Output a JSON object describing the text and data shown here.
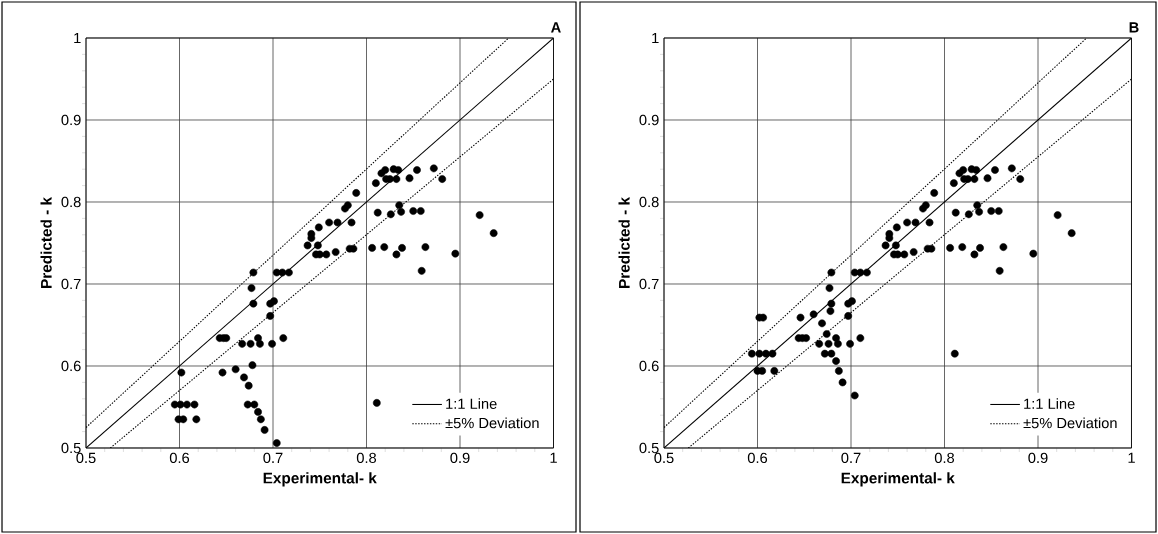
{
  "chart_data": [
    {
      "type": "scatter",
      "xlabel": "Experimental- k",
      "ylabel": "Predicted - k",
      "annotations": [
        "A"
      ],
      "xlim": [
        0.5,
        1
      ],
      "ylim": [
        0.5,
        1
      ],
      "xticks": [
        0.5,
        0.6,
        0.7,
        0.8,
        0.9,
        1
      ],
      "yticks": [
        0.5,
        0.6,
        0.7,
        0.8,
        0.9,
        1
      ],
      "grid": true,
      "legend": "bottom right",
      "series": [
        {
          "marker": "circle",
          "color": "#000000",
          "x": [
            0.679,
            0.677,
            0.679,
            0.697,
            0.701,
            0.697,
            0.704,
            0.71,
            0.717,
            0.737,
            0.741,
            0.741,
            0.748,
            0.746,
            0.75,
            0.757,
            0.749,
            0.76,
            0.769,
            0.767,
            0.777,
            0.78,
            0.784,
            0.782,
            0.786,
            0.789,
            0.806,
            0.81,
            0.812,
            0.816,
            0.82,
            0.829,
            0.834,
            0.821,
            0.825,
            0.832,
            0.819,
            0.826,
            0.832,
            0.835,
            0.837,
            0.838,
            0.846,
            0.85,
            0.858,
            0.854,
            0.859,
            0.863,
            0.872,
            0.881,
            0.895,
            0.921,
            0.936,
            0.811,
            0.643,
            0.647,
            0.65,
            0.667,
            0.676,
            0.684,
            0.686,
            0.699,
            0.711,
            0.602,
            0.646,
            0.66,
            0.669,
            0.674,
            0.678,
            0.595,
            0.601,
            0.608,
            0.616,
            0.599,
            0.604,
            0.618,
            0.673,
            0.68,
            0.684,
            0.687,
            0.691,
            0.704
          ],
          "values": [
            0.714,
            0.695,
            0.676,
            0.676,
            0.679,
            0.661,
            0.714,
            0.714,
            0.714,
            0.747,
            0.761,
            0.756,
            0.747,
            0.736,
            0.736,
            0.736,
            0.769,
            0.775,
            0.775,
            0.739,
            0.792,
            0.796,
            0.775,
            0.743,
            0.743,
            0.811,
            0.744,
            0.823,
            0.787,
            0.835,
            0.839,
            0.84,
            0.839,
            0.828,
            0.828,
            0.828,
            0.745,
            0.785,
            0.736,
            0.796,
            0.788,
            0.744,
            0.829,
            0.789,
            0.789,
            0.839,
            0.716,
            0.745,
            0.841,
            0.828,
            0.737,
            0.784,
            0.762,
            0.555,
            0.634,
            0.634,
            0.634,
            0.627,
            0.627,
            0.634,
            0.627,
            0.627,
            0.634,
            0.592,
            0.592,
            0.596,
            0.586,
            0.576,
            0.601,
            0.553,
            0.553,
            0.553,
            0.553,
            0.535,
            0.535,
            0.535,
            0.553,
            0.553,
            0.544,
            0.535,
            0.522,
            0.506
          ]
        },
        {
          "type": "line",
          "name": "1:1 Line",
          "line_style": "solid",
          "color": "#000000",
          "x": [
            0.5,
            1
          ],
          "values": [
            0.5,
            1
          ]
        },
        {
          "type": "line",
          "name": "±5% Deviation",
          "line_style": "dotted",
          "color": "#000000",
          "x": [
            0.5,
            0.952
          ],
          "values": [
            0.525,
            1
          ]
        },
        {
          "type": "line",
          "line_style": "dotted",
          "color": "#000000",
          "x": [
            0.526,
            1
          ],
          "values": [
            0.5,
            0.95
          ]
        }
      ]
    },
    {
      "type": "scatter",
      "xlabel": "Experimental- k",
      "ylabel": "Predicted - k",
      "annotations": [
        "B"
      ],
      "xlim": [
        0.5,
        1
      ],
      "ylim": [
        0.5,
        1
      ],
      "xticks": [
        0.5,
        0.6,
        0.7,
        0.8,
        0.9,
        1
      ],
      "yticks": [
        0.5,
        0.6,
        0.7,
        0.8,
        0.9,
        1
      ],
      "grid": true,
      "legend": "bottom right",
      "series": [
        {
          "marker": "circle",
          "color": "#000000",
          "x": [
            0.679,
            0.677,
            0.679,
            0.697,
            0.701,
            0.697,
            0.704,
            0.71,
            0.717,
            0.737,
            0.741,
            0.741,
            0.748,
            0.746,
            0.75,
            0.757,
            0.749,
            0.76,
            0.769,
            0.767,
            0.777,
            0.78,
            0.784,
            0.782,
            0.786,
            0.789,
            0.806,
            0.81,
            0.812,
            0.816,
            0.82,
            0.829,
            0.834,
            0.821,
            0.825,
            0.832,
            0.819,
            0.826,
            0.832,
            0.835,
            0.837,
            0.838,
            0.846,
            0.85,
            0.858,
            0.854,
            0.859,
            0.863,
            0.872,
            0.881,
            0.895,
            0.921,
            0.936,
            0.811,
            0.678,
            0.66,
            0.646,
            0.669,
            0.674,
            0.644,
            0.648,
            0.652,
            0.666,
            0.676,
            0.684,
            0.686,
            0.699,
            0.71,
            0.672,
            0.679,
            0.684,
            0.687,
            0.691,
            0.704,
            0.602,
            0.606,
            0.594,
            0.602,
            0.609,
            0.616,
            0.6,
            0.605,
            0.618
          ],
          "values": [
            0.714,
            0.695,
            0.676,
            0.676,
            0.679,
            0.661,
            0.714,
            0.714,
            0.714,
            0.747,
            0.761,
            0.756,
            0.747,
            0.736,
            0.736,
            0.736,
            0.769,
            0.775,
            0.775,
            0.739,
            0.792,
            0.796,
            0.775,
            0.743,
            0.743,
            0.811,
            0.744,
            0.823,
            0.787,
            0.835,
            0.839,
            0.84,
            0.839,
            0.828,
            0.828,
            0.828,
            0.745,
            0.785,
            0.736,
            0.796,
            0.788,
            0.744,
            0.829,
            0.789,
            0.789,
            0.839,
            0.716,
            0.745,
            0.841,
            0.828,
            0.737,
            0.784,
            0.762,
            0.615,
            0.667,
            0.663,
            0.659,
            0.652,
            0.639,
            0.634,
            0.634,
            0.634,
            0.627,
            0.627,
            0.634,
            0.627,
            0.627,
            0.634,
            0.615,
            0.615,
            0.606,
            0.594,
            0.58,
            0.564,
            0.659,
            0.659,
            0.615,
            0.615,
            0.615,
            0.615,
            0.594,
            0.594,
            0.594
          ]
        },
        {
          "type": "line",
          "name": "1:1 Line",
          "line_style": "solid",
          "color": "#000000",
          "x": [
            0.5,
            1
          ],
          "values": [
            0.5,
            1
          ]
        },
        {
          "type": "line",
          "name": "±5% Deviation",
          "line_style": "dotted",
          "color": "#000000",
          "x": [
            0.5,
            0.952
          ],
          "values": [
            0.525,
            1
          ]
        },
        {
          "type": "line",
          "line_style": "dotted",
          "color": "#000000",
          "x": [
            0.526,
            1
          ],
          "values": [
            0.5,
            0.95
          ]
        }
      ]
    }
  ]
}
